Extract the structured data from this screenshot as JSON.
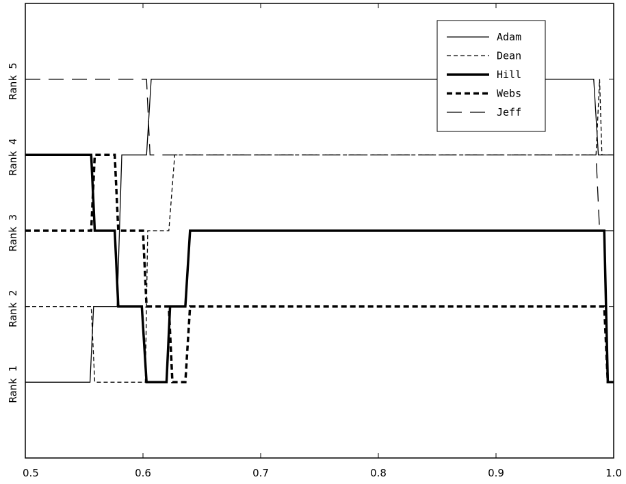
{
  "chart_data": {
    "type": "line",
    "title": "",
    "xlabel": "",
    "ylabel": "",
    "xlim": [
      0.5,
      1.0
    ],
    "ylim": [
      0,
      6
    ],
    "x_ticks": [
      "0.5",
      "0.6",
      "0.7",
      "0.8",
      "0.9",
      "1.0"
    ],
    "x_tick_values": [
      0.5,
      0.6,
      0.7,
      0.8,
      0.9,
      1.0
    ],
    "y_tick_labels": [
      "Rank 1",
      "Rank 2",
      "Rank 3",
      "Rank 4",
      "Rank 5"
    ],
    "y_tick_values": [
      1,
      2,
      3,
      4,
      5
    ],
    "grid": false,
    "legend_position": "top-right",
    "series": [
      {
        "name": "Adam",
        "style": "solid-thin",
        "x": [
          0.5,
          0.555,
          0.558,
          0.578,
          0.582,
          0.603,
          0.607,
          0.983,
          0.987,
          0.99,
          1.0
        ],
        "y": [
          1,
          1,
          2,
          2,
          4,
          4,
          5,
          5,
          4,
          4,
          4
        ]
      },
      {
        "name": "Dean",
        "style": "dashed-thin",
        "x": [
          0.5,
          0.556,
          0.559,
          0.602,
          0.604,
          0.622,
          0.627,
          0.985,
          0.988,
          0.99,
          1.0
        ],
        "y": [
          2,
          2,
          1,
          1,
          3,
          3,
          4,
          4,
          5,
          4,
          4
        ]
      },
      {
        "name": "Hill",
        "style": "solid-thick",
        "x": [
          0.5,
          0.556,
          0.559,
          0.576,
          0.579,
          0.599,
          0.603,
          0.62,
          0.623,
          0.636,
          0.64,
          0.992,
          0.995,
          1.0
        ],
        "y": [
          4,
          4,
          3,
          3,
          2,
          2,
          1,
          1,
          2,
          2,
          3,
          3,
          1,
          1
        ]
      },
      {
        "name": "Webs",
        "style": "dashed-thick",
        "x": [
          0.5,
          0.556,
          0.559,
          0.576,
          0.579,
          0.6,
          0.603,
          0.622,
          0.625,
          0.636,
          0.64,
          0.992,
          0.995,
          1.0
        ],
        "y": [
          3,
          3,
          4,
          4,
          3,
          3,
          2,
          2,
          1,
          1,
          2,
          2,
          1,
          1
        ]
      },
      {
        "name": "Jeff",
        "style": "longdash-thin",
        "x": [
          0.5,
          0.603,
          0.606,
          0.985,
          0.988,
          1.0
        ],
        "y": [
          5,
          5,
          4,
          4,
          3,
          3
        ]
      }
    ]
  }
}
